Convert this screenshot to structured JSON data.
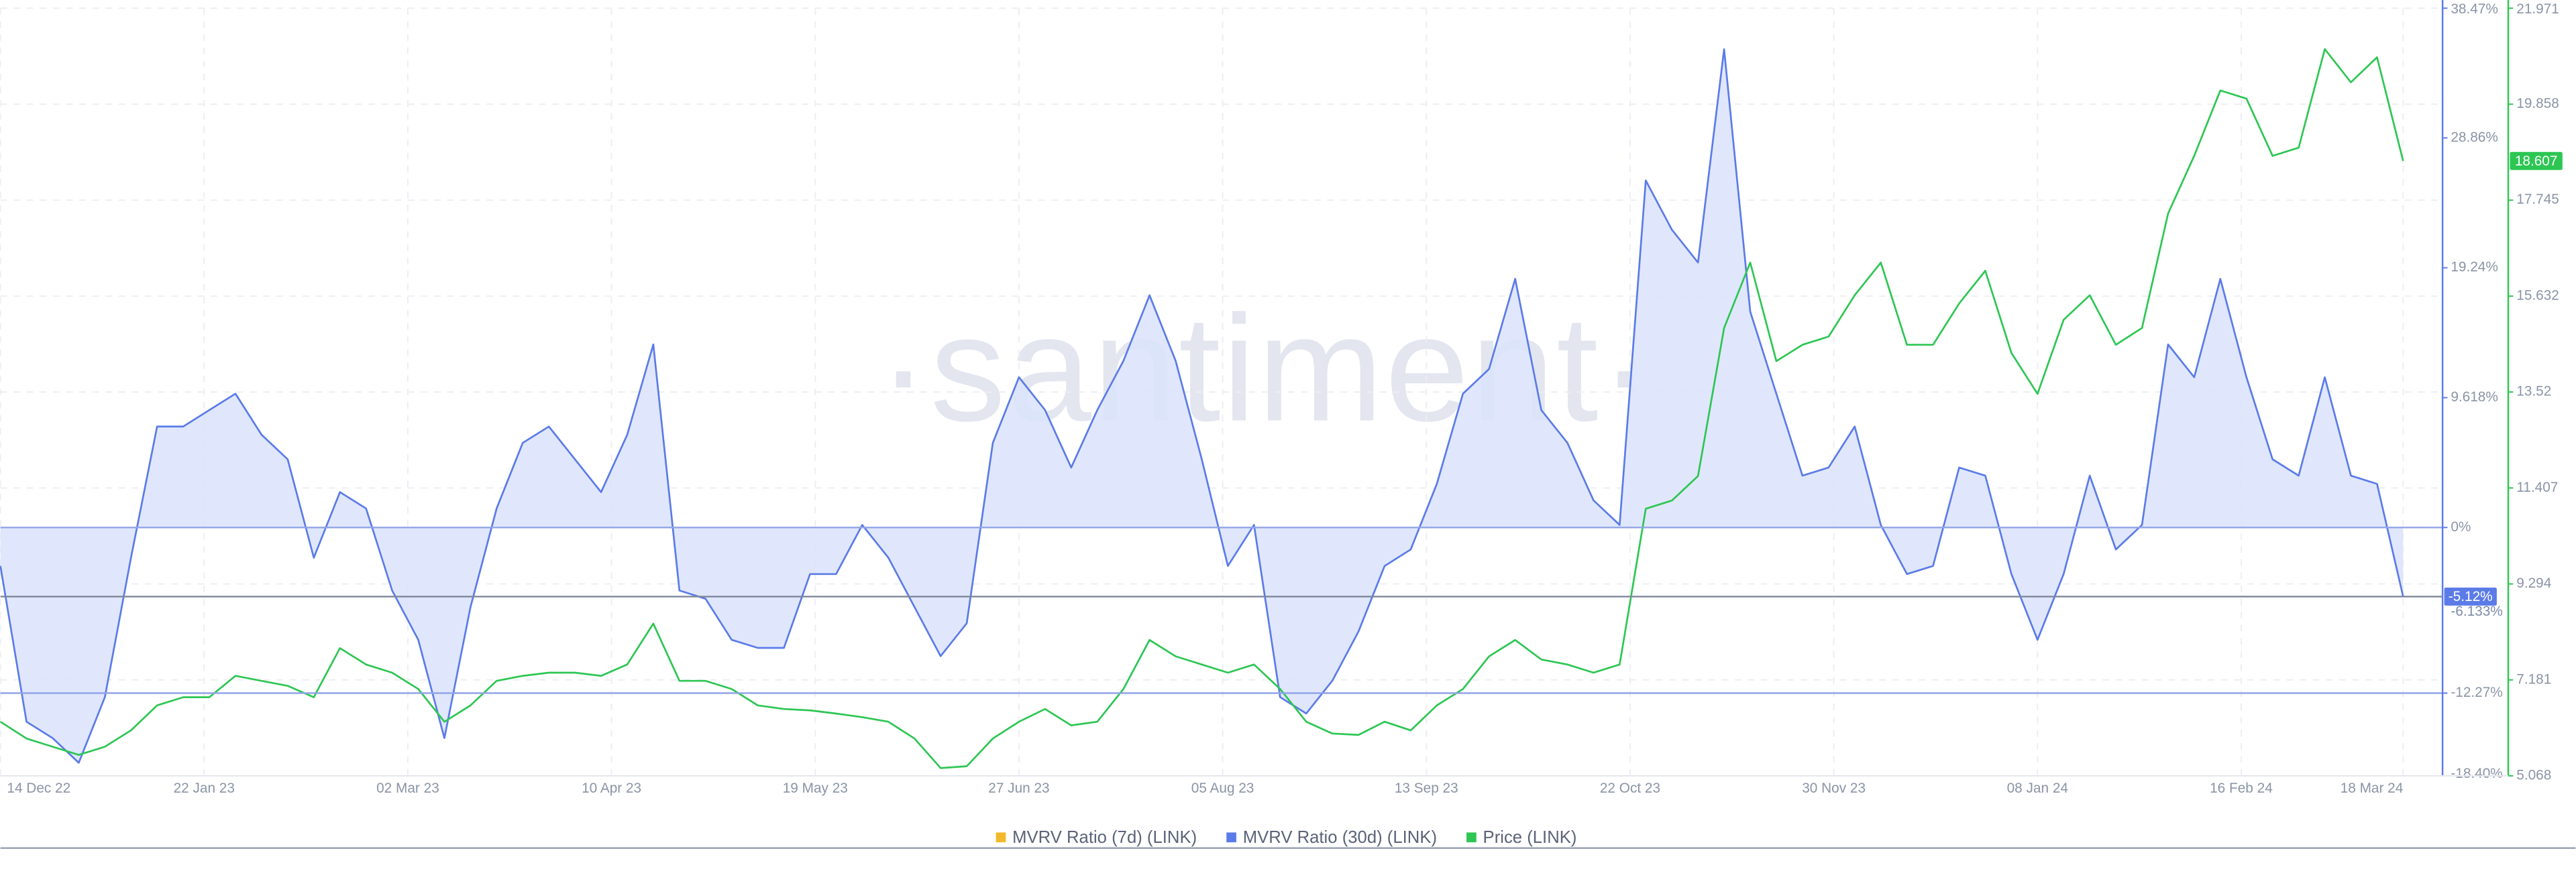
{
  "chart_data": {
    "type": "line",
    "watermark": "·santiment·",
    "x": [
      "2022-12-14",
      "2022-12-19",
      "2022-12-24",
      "2022-12-29",
      "2023-01-03",
      "2023-01-08",
      "2023-01-13",
      "2023-01-18",
      "2023-01-23",
      "2023-01-28",
      "2023-02-02",
      "2023-02-07",
      "2023-02-12",
      "2023-02-17",
      "2023-02-22",
      "2023-02-27",
      "2023-03-04",
      "2023-03-09",
      "2023-03-14",
      "2023-03-19",
      "2023-03-24",
      "2023-03-29",
      "2023-04-03",
      "2023-04-08",
      "2023-04-13",
      "2023-04-18",
      "2023-04-23",
      "2023-04-28",
      "2023-05-03",
      "2023-05-08",
      "2023-05-13",
      "2023-05-18",
      "2023-05-23",
      "2023-05-28",
      "2023-06-02",
      "2023-06-07",
      "2023-06-12",
      "2023-06-17",
      "2023-06-22",
      "2023-06-27",
      "2023-07-02",
      "2023-07-07",
      "2023-07-12",
      "2023-07-17",
      "2023-07-22",
      "2023-07-27",
      "2023-08-01",
      "2023-08-06",
      "2023-08-11",
      "2023-08-16",
      "2023-08-21",
      "2023-08-26",
      "2023-08-31",
      "2023-09-05",
      "2023-09-10",
      "2023-09-15",
      "2023-09-20",
      "2023-09-25",
      "2023-09-30",
      "2023-10-05",
      "2023-10-10",
      "2023-10-15",
      "2023-10-20",
      "2023-10-25",
      "2023-10-30",
      "2023-11-04",
      "2023-11-09",
      "2023-11-14",
      "2023-11-19",
      "2023-11-24",
      "2023-11-29",
      "2023-12-04",
      "2023-12-09",
      "2023-12-14",
      "2023-12-19",
      "2023-12-24",
      "2023-12-29",
      "2024-01-03",
      "2024-01-08",
      "2024-01-13",
      "2024-01-18",
      "2024-01-23",
      "2024-01-28",
      "2024-02-02",
      "2024-02-07",
      "2024-02-12",
      "2024-02-17",
      "2024-02-22",
      "2024-02-27",
      "2024-03-03",
      "2024-03-08",
      "2024-03-13",
      "2024-03-18"
    ],
    "xlim": [
      "2022-12-14",
      "2024-03-18"
    ],
    "xticks": [
      {
        "value": "2022-12-14",
        "label": "14 Dec 22"
      },
      {
        "value": "2023-01-22",
        "label": "22 Jan 23"
      },
      {
        "value": "2023-03-02",
        "label": "02 Mar 23"
      },
      {
        "value": "2023-04-10",
        "label": "10 Apr 23"
      },
      {
        "value": "2023-05-19",
        "label": "19 May 23"
      },
      {
        "value": "2023-06-27",
        "label": "27 Jun 23"
      },
      {
        "value": "2023-08-05",
        "label": "05 Aug 23"
      },
      {
        "value": "2023-09-13",
        "label": "13 Sep 23"
      },
      {
        "value": "2023-10-22",
        "label": "22 Oct 23"
      },
      {
        "value": "2023-11-30",
        "label": "30 Nov 23"
      },
      {
        "value": "2024-01-08",
        "label": "08 Jan 24"
      },
      {
        "value": "2024-02-16",
        "label": "16 Feb 24"
      },
      {
        "value": "2024-03-18",
        "label": "18 Mar 24"
      }
    ],
    "ylim": [
      -18.4,
      38.47
    ],
    "yticks": [
      {
        "value": 38.47,
        "label": "38.47%"
      },
      {
        "value": 28.86,
        "label": "28.86%"
      },
      {
        "value": 19.24,
        "label": "19.24%"
      },
      {
        "value": 9.618,
        "label": "9.618%"
      },
      {
        "value": 0,
        "label": "0%"
      },
      {
        "value": -12.27,
        "label": "-12.27%"
      },
      {
        "value": -18.4,
        "label": "-18.40%"
      }
    ],
    "y2lim": [
      5.068,
      21.971
    ],
    "y2ticks": [
      21.971,
      19.858,
      17.745,
      15.632,
      13.52,
      11.407,
      9.294,
      7.181,
      5.068
    ],
    "hlines": [
      0,
      -12.27
    ],
    "grid": true,
    "series": [
      {
        "name": "MVRV Ratio (7d) (LINK)",
        "color": "#f3b82c",
        "last_value": -6.133,
        "last_label": "-6.133%"
      },
      {
        "name": "MVRV Ratio (30d) (LINK)",
        "color": "#5b7be9",
        "fill": true,
        "last_label": "-5.12%",
        "values": [
          -2.85,
          -14.39,
          -15.6,
          -17.43,
          -12.57,
          -2.24,
          7.48,
          7.48,
          8.7,
          9.91,
          6.87,
          5.05,
          -2.24,
          2.62,
          1.41,
          -4.67,
          -8.32,
          -15.6,
          -5.89,
          1.41,
          6.27,
          7.48,
          5.05,
          2.62,
          6.87,
          13.56,
          -4.67,
          -5.28,
          -8.32,
          -8.92,
          -8.92,
          -3.45,
          -3.45,
          0.19,
          -2.24,
          -5.89,
          -9.53,
          -7.1,
          6.27,
          11.13,
          8.7,
          4.44,
          8.7,
          12.34,
          17.2,
          12.34,
          5.05,
          -2.85,
          0.19,
          -12.57,
          -13.78,
          -11.35,
          -7.71,
          -2.85,
          -1.63,
          3.23,
          9.91,
          11.74,
          18.42,
          8.7,
          6.27,
          2.01,
          0.19,
          25.71,
          22.06,
          19.63,
          35.43,
          15.99,
          9.91,
          3.84,
          4.44,
          7.48,
          0.19,
          -3.45,
          -2.85,
          4.44,
          3.84,
          -3.45,
          -8.32,
          -3.45,
          3.84,
          -1.63,
          0.19,
          13.56,
          11.13,
          18.42,
          11.13,
          5.05,
          3.84,
          11.13,
          3.84,
          3.23,
          -5.12
        ]
      },
      {
        "name": "Price (LINK)",
        "color": "#2dc653",
        "axis": "y2",
        "values": [
          6.26,
          5.89,
          5.71,
          5.53,
          5.71,
          6.07,
          6.62,
          6.8,
          6.8,
          7.27,
          7.16,
          7.05,
          6.8,
          7.88,
          7.52,
          7.34,
          6.98,
          6.26,
          6.62,
          7.16,
          7.27,
          7.34,
          7.34,
          7.27,
          7.52,
          8.42,
          7.16,
          7.16,
          6.98,
          6.62,
          6.54,
          6.51,
          6.44,
          6.36,
          6.26,
          5.89,
          5.24,
          5.28,
          5.89,
          6.26,
          6.54,
          6.18,
          6.26,
          6.98,
          8.06,
          7.7,
          7.52,
          7.34,
          7.52,
          6.98,
          6.26,
          6.0,
          5.97,
          6.26,
          6.07,
          6.62,
          6.98,
          7.7,
          8.06,
          7.63,
          7.52,
          7.34,
          7.52,
          10.95,
          11.13,
          11.67,
          14.93,
          16.37,
          14.2,
          14.56,
          14.74,
          15.65,
          16.37,
          14.56,
          14.56,
          15.47,
          16.19,
          14.38,
          13.48,
          15.11,
          15.65,
          14.56,
          14.93,
          17.45,
          18.72,
          20.16,
          19.98,
          18.72,
          18.9,
          21.07,
          20.34,
          20.89,
          18.607
        ]
      }
    ]
  }
}
